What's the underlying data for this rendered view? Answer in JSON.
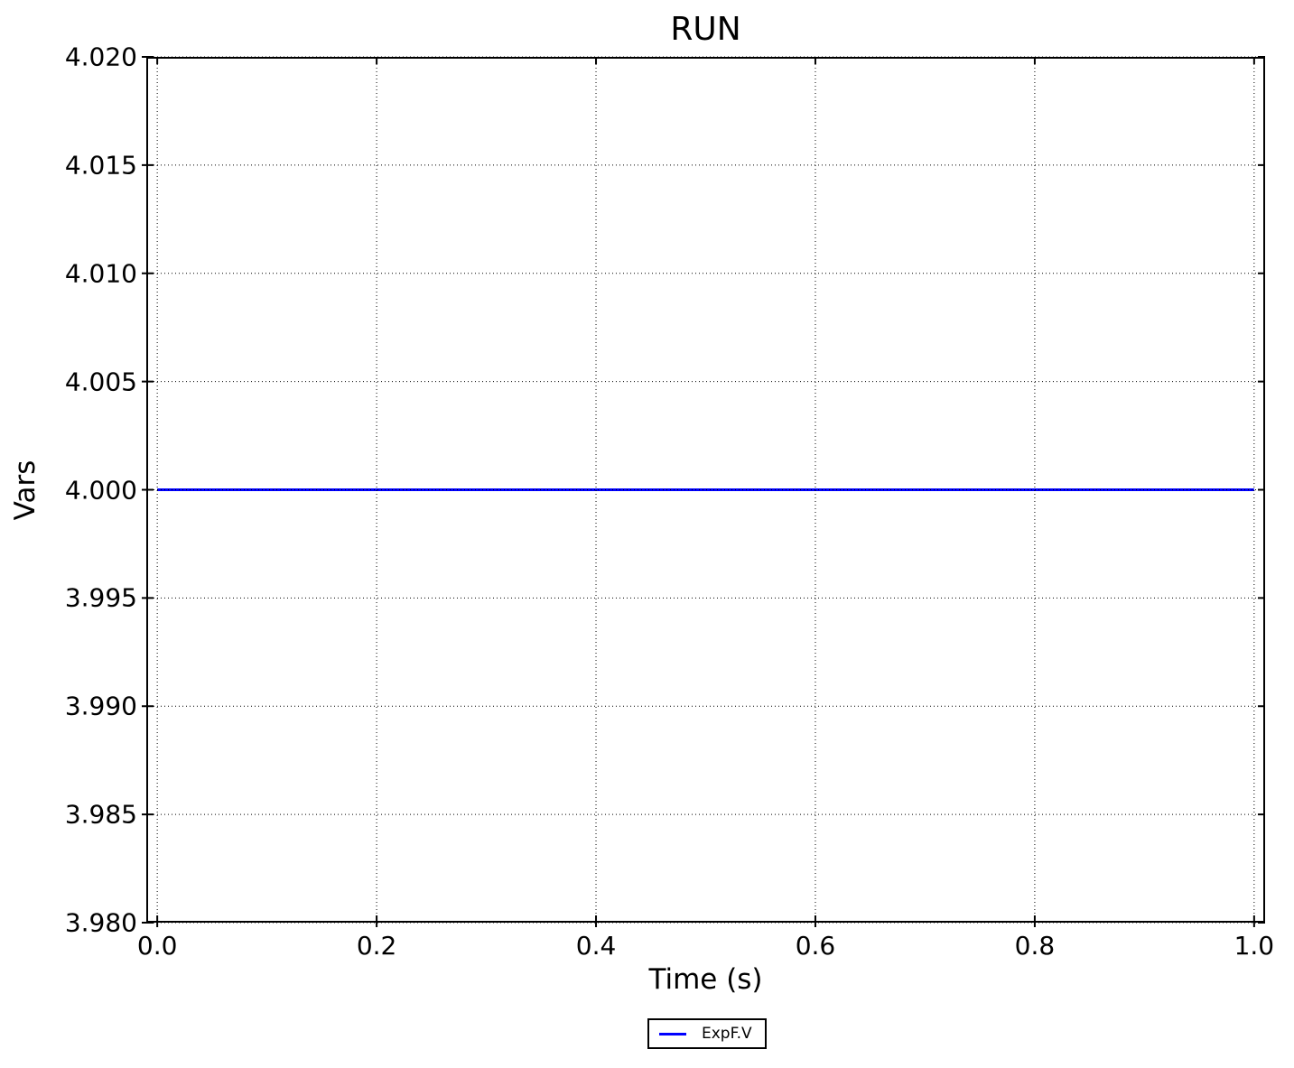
{
  "figure": {
    "title": "RUN",
    "xlabel": "Time (s)",
    "ylabel": "Vars",
    "legend": {
      "position": "below-axes",
      "entries": [
        {
          "label": "ExpF.V",
          "color": "#0000ff"
        }
      ]
    }
  },
  "chart_data": {
    "type": "line",
    "title": "RUN",
    "xlabel": "Time (s)",
    "ylabel": "Vars",
    "xlim": [
      -0.01,
      1.01
    ],
    "ylim": [
      3.98,
      4.02
    ],
    "x_ticks": [
      0,
      0.2,
      0.4,
      0.6,
      0.8,
      1
    ],
    "x_tick_labels": [
      "0.0",
      "0.2",
      "0.4",
      "0.6",
      "0.8",
      "1.0"
    ],
    "y_ticks": [
      3.98,
      3.985,
      3.99,
      3.995,
      4.0,
      4.005,
      4.01,
      4.015,
      4.02
    ],
    "y_tick_labels": [
      "3.980",
      "3.985",
      "3.990",
      "3.995",
      "4.000",
      "4.005",
      "4.010",
      "4.015",
      "4.020"
    ],
    "grid": true,
    "grid_style": "dotted",
    "legend_position": "below-axes",
    "series": [
      {
        "name": "ExpF.V",
        "color": "#0000ff",
        "x": [
          0.0,
          1.0
        ],
        "y": [
          4.0,
          4.0
        ]
      }
    ],
    "colors": {
      "axes": "#000000",
      "background": "#ffffff"
    }
  }
}
